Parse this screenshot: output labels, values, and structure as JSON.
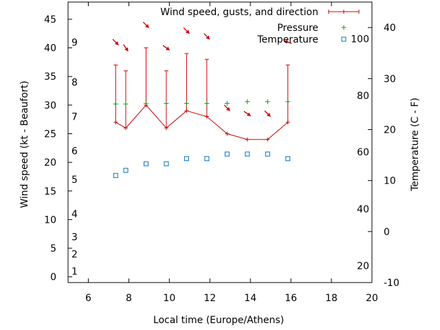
{
  "chart_data": {
    "type": "line",
    "xlabel": "Local time (Europe/Athens)",
    "ylabel_left": "Wind speed (kt - Beaufort)",
    "ylabel_right": "Temperature (C - F)",
    "xlim": [
      5,
      20
    ],
    "ylim_left": [
      -1,
      48
    ],
    "ylim_right": [
      -10,
      45
    ],
    "x_ticks": [
      "6",
      "8",
      "10",
      "12",
      "14",
      "16",
      "18",
      "20"
    ],
    "y_left_ticks": [
      "0",
      "5",
      "10",
      "15",
      "20",
      "25",
      "30",
      "35",
      "40",
      "45"
    ],
    "y_right_ticks": [
      "-10",
      "0",
      "10",
      "20",
      "30",
      "40"
    ],
    "beaufort_labels": [
      {
        "label": "1",
        "y": 1
      },
      {
        "label": "2",
        "y": 4
      },
      {
        "label": "3",
        "y": 7
      },
      {
        "label": "4",
        "y": 11
      },
      {
        "label": "5",
        "y": 17
      },
      {
        "label": "6",
        "y": 22
      },
      {
        "label": "7",
        "y": 28
      },
      {
        "label": "8",
        "y": 34
      },
      {
        "label": "9",
        "y": 41
      }
    ],
    "fahrenheit_labels": [
      {
        "label": "20",
        "y": -6.7
      },
      {
        "label": "40",
        "y": 4.4
      },
      {
        "label": "60",
        "y": 15.6
      },
      {
        "label": "80",
        "y": 26.7
      },
      {
        "label": "100",
        "y": 37.8
      }
    ],
    "legend": [
      {
        "name": "Wind speed, gusts, and direction",
        "color": "#cc0000"
      },
      {
        "name": "Pressure",
        "color": "#00a000"
      },
      {
        "name": "Temperature",
        "color": "#0070c0"
      }
    ],
    "legend_position": "top-right",
    "grid": false,
    "series": {
      "wind": {
        "x": [
          7.35,
          7.85,
          8.85,
          9.85,
          10.85,
          11.85,
          12.85,
          13.85,
          14.85,
          15.85
        ],
        "y": [
          27,
          26,
          30,
          26,
          29,
          28,
          25,
          24,
          24,
          27
        ]
      },
      "gusts": {
        "x": [
          7.35,
          7.85,
          8.85,
          9.85,
          10.85,
          11.85,
          15.85
        ],
        "y": [
          37,
          36,
          40,
          36,
          39,
          38,
          37
        ]
      },
      "direction": {
        "x": [
          7.35,
          7.85,
          8.85,
          9.85,
          10.85,
          11.85,
          12.85,
          13.85,
          14.85,
          15.85
        ],
        "y": [
          41,
          40,
          44,
          40,
          43,
          42,
          29.5,
          28.5,
          28.5,
          41
        ],
        "arrow_angle_deg": [
          45,
          55,
          45,
          35,
          45,
          45,
          45,
          35,
          45,
          200
        ]
      },
      "pressure": {
        "x": [
          7.35,
          7.85,
          8.85,
          9.85,
          10.85,
          11.85,
          12.85,
          13.85,
          14.85,
          15.85
        ],
        "y": [
          30.2,
          30.2,
          30.3,
          30.3,
          30.3,
          30.3,
          30.3,
          30.6,
          30.6,
          30.6
        ]
      },
      "temperature": {
        "x": [
          7.35,
          7.85,
          8.85,
          9.85,
          10.85,
          11.85,
          12.85,
          13.85,
          14.85,
          15.85
        ],
        "y": [
          11,
          12,
          13.3,
          13.3,
          14.3,
          14.3,
          15.2,
          15.2,
          15.2,
          14.3
        ]
      }
    }
  }
}
